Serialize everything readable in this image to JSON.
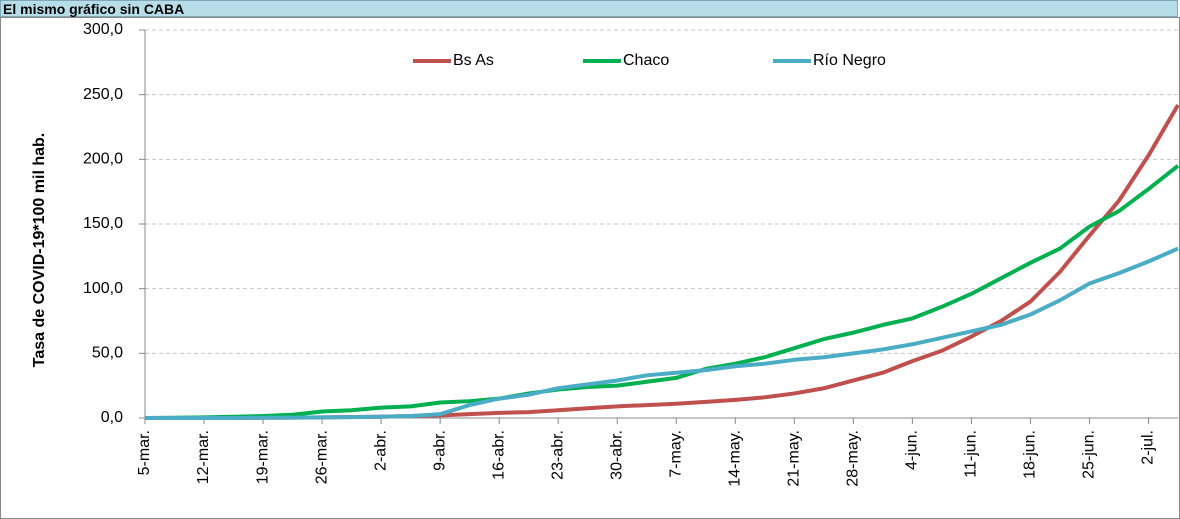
{
  "header": {
    "title": "El mismo gráfico sin CABA"
  },
  "chart_data": {
    "type": "line",
    "ylabel": "Tasa de COVID-19*100 mil hab.",
    "categories": [
      "5-mar.",
      null,
      "12-mar.",
      null,
      "19-mar.",
      null,
      "26-mar.",
      null,
      "2-abr.",
      null,
      "9-abr.",
      null,
      "16-abr.",
      null,
      "23-abr.",
      null,
      "30-abr.",
      null,
      "7-may.",
      null,
      "14-may.",
      null,
      "21-may.",
      null,
      "28-may.",
      null,
      "4-jun.",
      null,
      "11-jun.",
      null,
      "18-jun.",
      null,
      "25-jun.",
      null,
      "2-jul.",
      null
    ],
    "series": [
      {
        "name": "Bs As",
        "color": "#c0504d",
        "values": [
          0,
          0,
          0,
          0,
          0.2,
          0.3,
          0.5,
          0.8,
          1,
          1.5,
          2,
          3,
          4,
          4.5,
          6,
          7.5,
          9,
          10,
          11,
          12.5,
          14,
          16,
          19,
          23,
          29,
          35,
          44,
          52,
          63,
          75,
          90,
          113,
          141,
          168,
          203,
          242
        ]
      },
      {
        "name": "Chaco",
        "color": "#00b050",
        "values": [
          0,
          0.2,
          0.5,
          1,
          1.5,
          2.5,
          5,
          6,
          8,
          9,
          12,
          13,
          15,
          19,
          22,
          24,
          25,
          28,
          31,
          38,
          42,
          47,
          54,
          61,
          66,
          72,
          77,
          86,
          96,
          108,
          120,
          131,
          148,
          160,
          177,
          195
        ]
      },
      {
        "name": "Río Negro",
        "color": "#4bacc6",
        "values": [
          0,
          0,
          0,
          0,
          0.2,
          0.3,
          0.5,
          0.7,
          1,
          1.5,
          3,
          10,
          15,
          18,
          23,
          26,
          29,
          33,
          35,
          37,
          40,
          42,
          45,
          47,
          50,
          53,
          57,
          62,
          67,
          72,
          80,
          91,
          104,
          112,
          121,
          131
        ]
      }
    ],
    "ylim": [
      0,
      300
    ],
    "yticks": [
      {
        "value": 0,
        "label": "0,0"
      },
      {
        "value": 50,
        "label": "50,0"
      },
      {
        "value": 100,
        "label": "100,0"
      },
      {
        "value": 150,
        "label": "150,0"
      },
      {
        "value": 200,
        "label": "200,0"
      },
      {
        "value": 250,
        "label": "250,0"
      },
      {
        "value": 300,
        "label": "300,0"
      }
    ],
    "grid": true,
    "legend": "top"
  }
}
